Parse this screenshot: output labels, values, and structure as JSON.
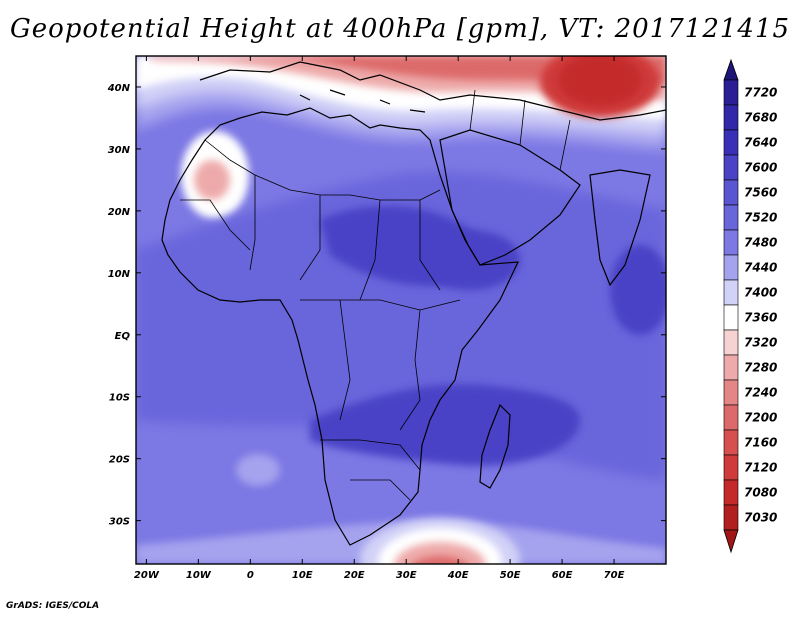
{
  "title": "Geopotential Height at 400hPa [gpm], VT: 2017121415",
  "credit": "GrADS: IGES/COLA",
  "map": {
    "lon_range": [
      -22,
      80
    ],
    "lat_range": [
      -37,
      45
    ],
    "lat_ticks": [
      {
        "lat": 40,
        "label": "40N"
      },
      {
        "lat": 30,
        "label": "30N"
      },
      {
        "lat": 20,
        "label": "20N"
      },
      {
        "lat": 10,
        "label": "10N"
      },
      {
        "lat": 0,
        "label": "EQ"
      },
      {
        "lat": -10,
        "label": "10S"
      },
      {
        "lat": -20,
        "label": "20S"
      },
      {
        "lat": -30,
        "label": "30S"
      }
    ],
    "lon_ticks": [
      {
        "lon": -20,
        "label": "20W"
      },
      {
        "lon": -10,
        "label": "10W"
      },
      {
        "lon": 0,
        "label": "0"
      },
      {
        "lon": 10,
        "label": "10E"
      },
      {
        "lon": 20,
        "label": "20E"
      },
      {
        "lon": 30,
        "label": "30E"
      },
      {
        "lon": 40,
        "label": "40E"
      },
      {
        "lon": 50,
        "label": "50E"
      },
      {
        "lon": 60,
        "label": "60E"
      },
      {
        "lon": 70,
        "label": "70E"
      }
    ]
  },
  "colorbar": {
    "levels": [
      {
        "label": "7720",
        "color": "#2a1f94"
      },
      {
        "label": "7680",
        "color": "#3227a8"
      },
      {
        "label": "7640",
        "color": "#3a30b8"
      },
      {
        "label": "7600",
        "color": "#4a43c6"
      },
      {
        "label": "7560",
        "color": "#5a55d1"
      },
      {
        "label": "7520",
        "color": "#6965db"
      },
      {
        "label": "7480",
        "color": "#7c78e4"
      },
      {
        "label": "7440",
        "color": "#a5a3ee"
      },
      {
        "label": "7400",
        "color": "#d2d1f7"
      },
      {
        "label": "7360",
        "color": "#ffffff"
      },
      {
        "label": "7320",
        "color": "#f6d2d2"
      },
      {
        "label": "7280",
        "color": "#eeaaaa"
      },
      {
        "label": "7240",
        "color": "#e58686"
      },
      {
        "label": "7200",
        "color": "#dd6a6a"
      },
      {
        "label": "7160",
        "color": "#d65050"
      },
      {
        "label": "7120",
        "color": "#cf3a3a"
      },
      {
        "label": "7080",
        "color": "#c42a2a"
      },
      {
        "label": "7030",
        "color": "#b21f1f"
      }
    ],
    "top_arrow_color": "#1e1578",
    "bottom_arrow_color": "#a01515"
  },
  "fields": [
    {
      "name": "subtropical-ridge-band",
      "level": "7520",
      "color": "#6965db"
    },
    {
      "name": "equatorial-high",
      "level": "7600",
      "color": "#4a43c6"
    },
    {
      "name": "horn-of-africa-high",
      "level": "7600",
      "color": "#4a43c6"
    },
    {
      "name": "madagascar-high",
      "level": "7600",
      "color": "#4a43c6"
    },
    {
      "name": "india-high",
      "level": "7600",
      "color": "#4a43c6"
    },
    {
      "name": "northwest-low-white",
      "level": "7360",
      "color": "#ffffff"
    },
    {
      "name": "northwest-low-core",
      "level": "7280",
      "color": "#eeaaaa"
    },
    {
      "name": "south-atlantic-cell",
      "level": "7480",
      "color": "#7c78e4"
    },
    {
      "name": "southern-trough",
      "level": "7280",
      "color": "#eeaaaa"
    },
    {
      "name": "mediterranean-trough",
      "level": "7200",
      "color": "#dd6a6a"
    },
    {
      "name": "central-asia-low",
      "level": "7080",
      "color": "#c42a2a"
    }
  ]
}
